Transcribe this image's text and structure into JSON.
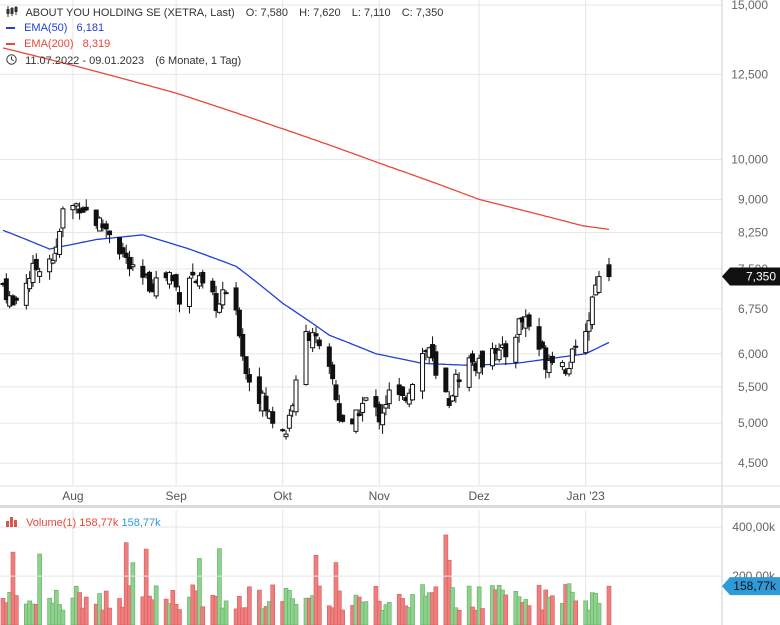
{
  "header": {
    "title": "ABOUT YOU HOLDING SE (XETRA, Last)",
    "ohlc": [
      {
        "label": "O:",
        "value": "7,580"
      },
      {
        "label": "H:",
        "value": "7,620"
      },
      {
        "label": "L:",
        "value": "7,110"
      },
      {
        "label": "C:",
        "value": "7,350"
      }
    ],
    "ema50": {
      "label": "EMA(50)",
      "value": "6,181",
      "color": "#1f3fd8"
    },
    "ema200": {
      "label": "EMA(200)",
      "value": "8,319",
      "color": "#e8473a"
    },
    "range": {
      "dates": "11.07.2022 - 09.01.2023",
      "span": "(6 Monate, 1 Tag)",
      "icon": "clock-icon"
    },
    "logo_icon": "candlestick-chart-icon"
  },
  "volume_legend": {
    "label": "Volume(1)",
    "value_red": "158,77k",
    "value_blue": "158,77k",
    "icon": "volume-bars-icon"
  },
  "price_marker": "7,350",
  "volume_marker": "158,77k",
  "colors": {
    "bull": "#ffffff",
    "bear": "#111111",
    "vol_up": "#8fd18f",
    "vol_down": "#ef7f7f",
    "grid": "#e6e6e6",
    "marker_blue": "#2f9ad8"
  },
  "chart_data": {
    "type": "candlestick",
    "y_scale": "log",
    "ylim": [
      4.25,
      15.2
    ],
    "y_ticks": [
      "15,000",
      "12,500",
      "10,000",
      "9,000",
      "8,250",
      "7,500",
      "6,750",
      "6,000",
      "5,500",
      "5,000",
      "4,500"
    ],
    "y_tick_values": [
      15.0,
      12.5,
      10.0,
      9.0,
      8.25,
      7.5,
      6.75,
      6.0,
      5.5,
      5.0,
      4.5
    ],
    "x_ticks": [
      "Aug",
      "Sep",
      "Okt",
      "Nov",
      "Dez",
      "Jan '23"
    ],
    "x_tick_dates": [
      "2022-08-01",
      "2022-09-01",
      "2022-10-03",
      "2022-11-01",
      "2022-12-01",
      "2023-01-02"
    ],
    "date_range": [
      "2022-07-11",
      "2023-01-09"
    ],
    "ohlc_pivots": [
      [
        "2022-07-11",
        7.2
      ],
      [
        "2022-07-14",
        6.8
      ],
      [
        "2022-07-18",
        7.3
      ],
      [
        "2022-07-22",
        7.6
      ],
      [
        "2022-07-27",
        7.8
      ],
      [
        "2022-07-29",
        8.7
      ],
      [
        "2022-08-03",
        8.9
      ],
      [
        "2022-08-08",
        8.5
      ],
      [
        "2022-08-12",
        8.3
      ],
      [
        "2022-08-16",
        7.8
      ],
      [
        "2022-08-19",
        7.4
      ],
      [
        "2022-08-24",
        7.2
      ],
      [
        "2022-08-30",
        7.4
      ],
      [
        "2022-09-02",
        7.0
      ],
      [
        "2022-09-05",
        7.4
      ],
      [
        "2022-09-08",
        7.2
      ],
      [
        "2022-09-12",
        6.9
      ],
      [
        "2022-09-14",
        6.8
      ],
      [
        "2022-09-16",
        7.1
      ],
      [
        "2022-09-20",
        6.4
      ],
      [
        "2022-09-22",
        5.7
      ],
      [
        "2022-09-26",
        5.4
      ],
      [
        "2022-09-29",
        5.1
      ],
      [
        "2022-10-04",
        4.9
      ],
      [
        "2022-10-07",
        5.5
      ],
      [
        "2022-10-10",
        6.3
      ],
      [
        "2022-10-12",
        6.4
      ],
      [
        "2022-10-14",
        6.0
      ],
      [
        "2022-10-18",
        5.6
      ],
      [
        "2022-10-20",
        5.1
      ],
      [
        "2022-10-24",
        4.9
      ],
      [
        "2022-10-26",
        5.2
      ],
      [
        "2022-10-28",
        5.3
      ],
      [
        "2022-11-01",
        5.1
      ],
      [
        "2022-11-04",
        5.4
      ],
      [
        "2022-11-08",
        5.3
      ],
      [
        "2022-11-10",
        5.5
      ],
      [
        "2022-11-14",
        6.0
      ],
      [
        "2022-11-16",
        6.1
      ],
      [
        "2022-11-18",
        5.6
      ],
      [
        "2022-11-22",
        5.3
      ],
      [
        "2022-11-24",
        5.6
      ],
      [
        "2022-11-28",
        5.9
      ],
      [
        "2022-12-01",
        5.8
      ],
      [
        "2022-12-05",
        6.2
      ],
      [
        "2022-12-07",
        6.0
      ],
      [
        "2022-12-09",
        6.0
      ],
      [
        "2022-12-13",
        6.5
      ],
      [
        "2022-12-15",
        6.6
      ],
      [
        "2022-12-19",
        6.1
      ],
      [
        "2022-12-21",
        5.9
      ],
      [
        "2022-12-23",
        6.0
      ],
      [
        "2022-12-27",
        5.8
      ],
      [
        "2022-12-30",
        6.0
      ],
      [
        "2023-01-03",
        6.6
      ],
      [
        "2023-01-05",
        7.3
      ],
      [
        "2023-01-09",
        7.35
      ]
    ],
    "ema50": [
      [
        "2022-07-11",
        8.3
      ],
      [
        "2022-07-25",
        7.9
      ],
      [
        "2022-08-08",
        8.1
      ],
      [
        "2022-08-22",
        8.2
      ],
      [
        "2022-09-05",
        7.9
      ],
      [
        "2022-09-19",
        7.55
      ],
      [
        "2022-10-03",
        6.85
      ],
      [
        "2022-10-17",
        6.3
      ],
      [
        "2022-10-31",
        6.0
      ],
      [
        "2022-11-14",
        5.85
      ],
      [
        "2022-11-28",
        5.82
      ],
      [
        "2022-12-12",
        5.85
      ],
      [
        "2022-12-26",
        5.95
      ],
      [
        "2023-01-02",
        6.0
      ],
      [
        "2023-01-09",
        6.181
      ]
    ],
    "ema200": [
      [
        "2022-07-11",
        13.4
      ],
      [
        "2022-08-01",
        12.8
      ],
      [
        "2022-09-01",
        11.9
      ],
      [
        "2022-10-01",
        10.9
      ],
      [
        "2022-11-01",
        9.9
      ],
      [
        "2022-12-01",
        9.0
      ],
      [
        "2023-01-01",
        8.4
      ],
      [
        "2023-01-09",
        8.319
      ]
    ],
    "volume": {
      "y_ticks": [
        "400,00k",
        "200,00k"
      ],
      "y_tick_values": [
        400,
        200
      ],
      "ylim": [
        0,
        470
      ],
      "unit": "k"
    }
  }
}
